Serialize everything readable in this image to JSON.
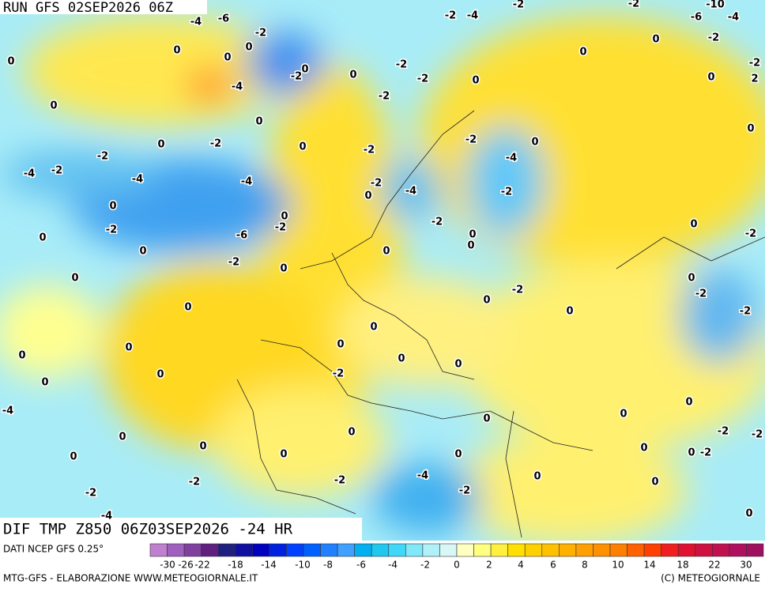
{
  "header": {
    "run": "RUN GFS 02SEP2026 06Z",
    "product": "DIF TMP Z850 06Z03SEP2026 -24 HR"
  },
  "footer": {
    "source": "DATI NCEP GFS 0.25°",
    "credit": "MTG-GFS - ELABORAZIONE WWW.METEOGIORNALE.IT",
    "copyright": "(C) METEOGIORNALE"
  },
  "map_labels": [
    -4,
    -6,
    -2,
    0,
    0,
    0,
    0,
    -2,
    -4,
    0,
    -2,
    -2,
    -2,
    0,
    -2,
    -4,
    -2,
    0,
    0,
    -2,
    -10,
    -6,
    -4,
    -2,
    -2,
    0,
    2,
    0,
    0,
    0,
    -2,
    0,
    0,
    -2,
    -4,
    -2,
    -4,
    -4,
    -2,
    -2,
    0,
    -4,
    -2,
    0,
    -4,
    -2,
    0,
    0,
    -2,
    0,
    0,
    -6,
    -2,
    0,
    -2,
    0,
    0,
    0,
    -2,
    0,
    0,
    0,
    0,
    -2,
    -2,
    0,
    0,
    0,
    -2,
    -2,
    0,
    0,
    0,
    0,
    0,
    -2,
    0,
    0,
    0,
    -4,
    0,
    0,
    0,
    0,
    0,
    -2,
    -2,
    0,
    0,
    0,
    0,
    0,
    0,
    -2,
    -2,
    -2,
    -4,
    -2,
    0,
    0,
    -2,
    0,
    -4
  ],
  "colorscale": {
    "colors": [
      "#c080d0",
      "#a060c0",
      "#8040a0",
      "#602080",
      "#202080",
      "#1010a0",
      "#0000c0",
      "#0020e0",
      "#0040ff",
      "#0060ff",
      "#2080ff",
      "#40a0ff",
      "#00b0f0",
      "#20c8f0",
      "#40d8f8",
      "#80e8f8",
      "#b0f0f8",
      "#d8f8f8",
      "#ffffc0",
      "#ffff80",
      "#fff040",
      "#ffe000",
      "#ffd000",
      "#ffc000",
      "#ffb000",
      "#ffa000",
      "#ff9000",
      "#ff8000",
      "#ff6000",
      "#ff4000",
      "#f02020",
      "#e01030",
      "#d01040",
      "#c01050",
      "#b01060",
      "#a01060"
    ],
    "labels": [
      -30,
      -26,
      -22,
      -18,
      -14,
      -10,
      -8,
      -6,
      -4,
      -2,
      0,
      2,
      4,
      6,
      8,
      10,
      14,
      18,
      22,
      30
    ]
  }
}
